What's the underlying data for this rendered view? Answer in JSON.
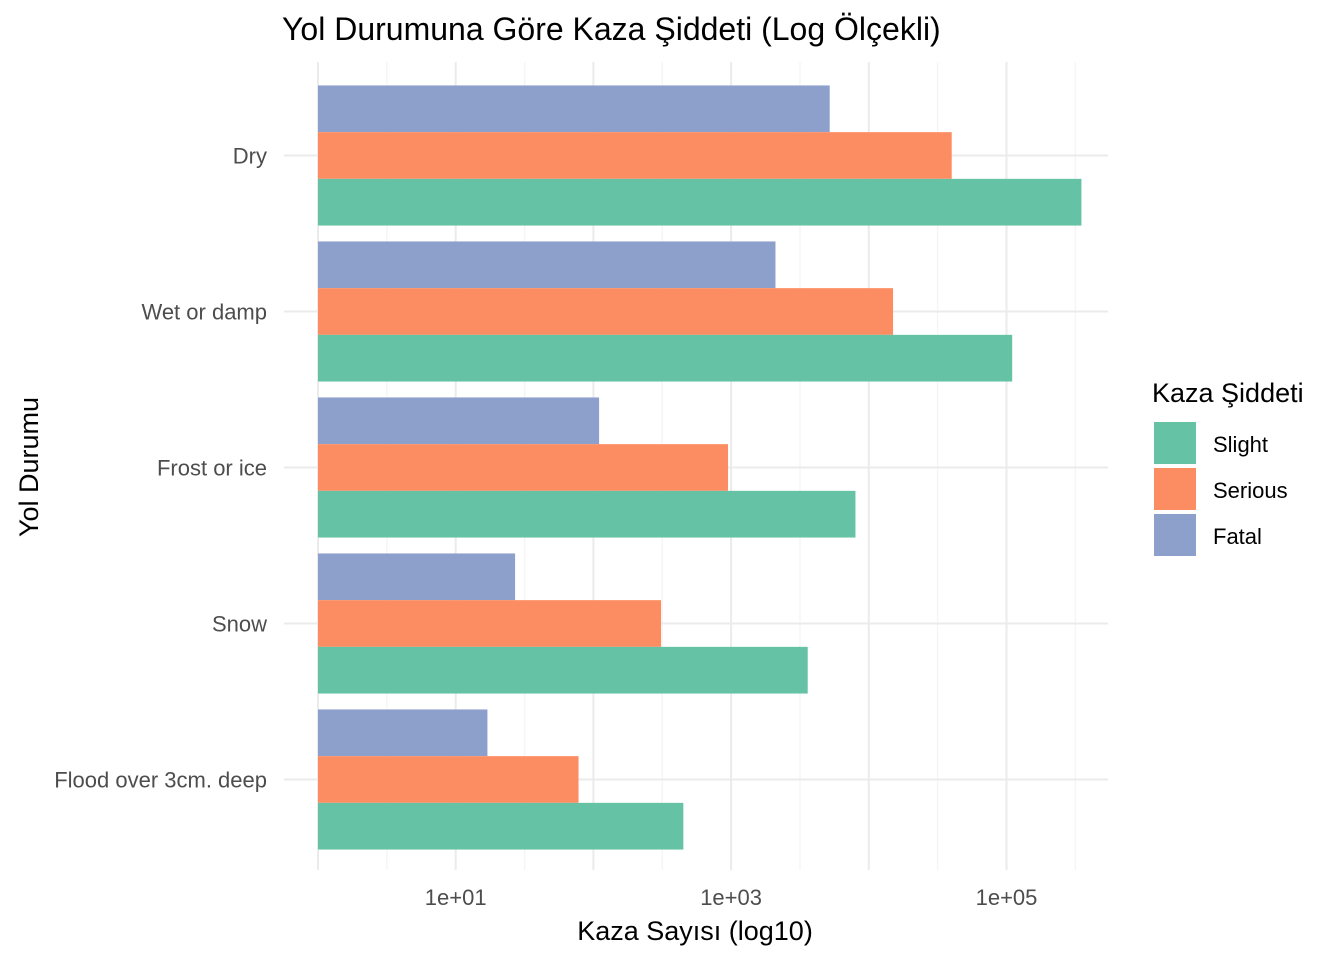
{
  "chart_data": {
    "type": "bar",
    "orientation": "horizontal",
    "title": "Yol Durumuna Göre Kaza Şiddeti (Log Ölçekli)",
    "xlabel": "Kaza Sayısı (log10)",
    "ylabel": "Yol Durumu",
    "x_scale": "log10",
    "xlim": [
      1,
      1000000
    ],
    "x_ticks": [
      10,
      1000,
      100000
    ],
    "x_tick_labels": [
      "1e+01",
      "1e+03",
      "1e+05"
    ],
    "categories": [
      "Dry",
      "Wet or damp",
      "Frost or ice",
      "Snow",
      "Flood over 3cm. deep"
    ],
    "series": [
      {
        "name": "Slight",
        "color": "#66c2a5",
        "values": [
          350000,
          110000,
          8000,
          3600,
          450
        ]
      },
      {
        "name": "Serious",
        "color": "#fc8d62",
        "values": [
          40000,
          15000,
          950,
          310,
          78
        ]
      },
      {
        "name": "Fatal",
        "color": "#8da0cb",
        "values": [
          5200,
          2100,
          110,
          27,
          17
        ]
      }
    ],
    "legend_title": "Kaza Şiddeti",
    "legend_position": "right",
    "grid": true
  }
}
